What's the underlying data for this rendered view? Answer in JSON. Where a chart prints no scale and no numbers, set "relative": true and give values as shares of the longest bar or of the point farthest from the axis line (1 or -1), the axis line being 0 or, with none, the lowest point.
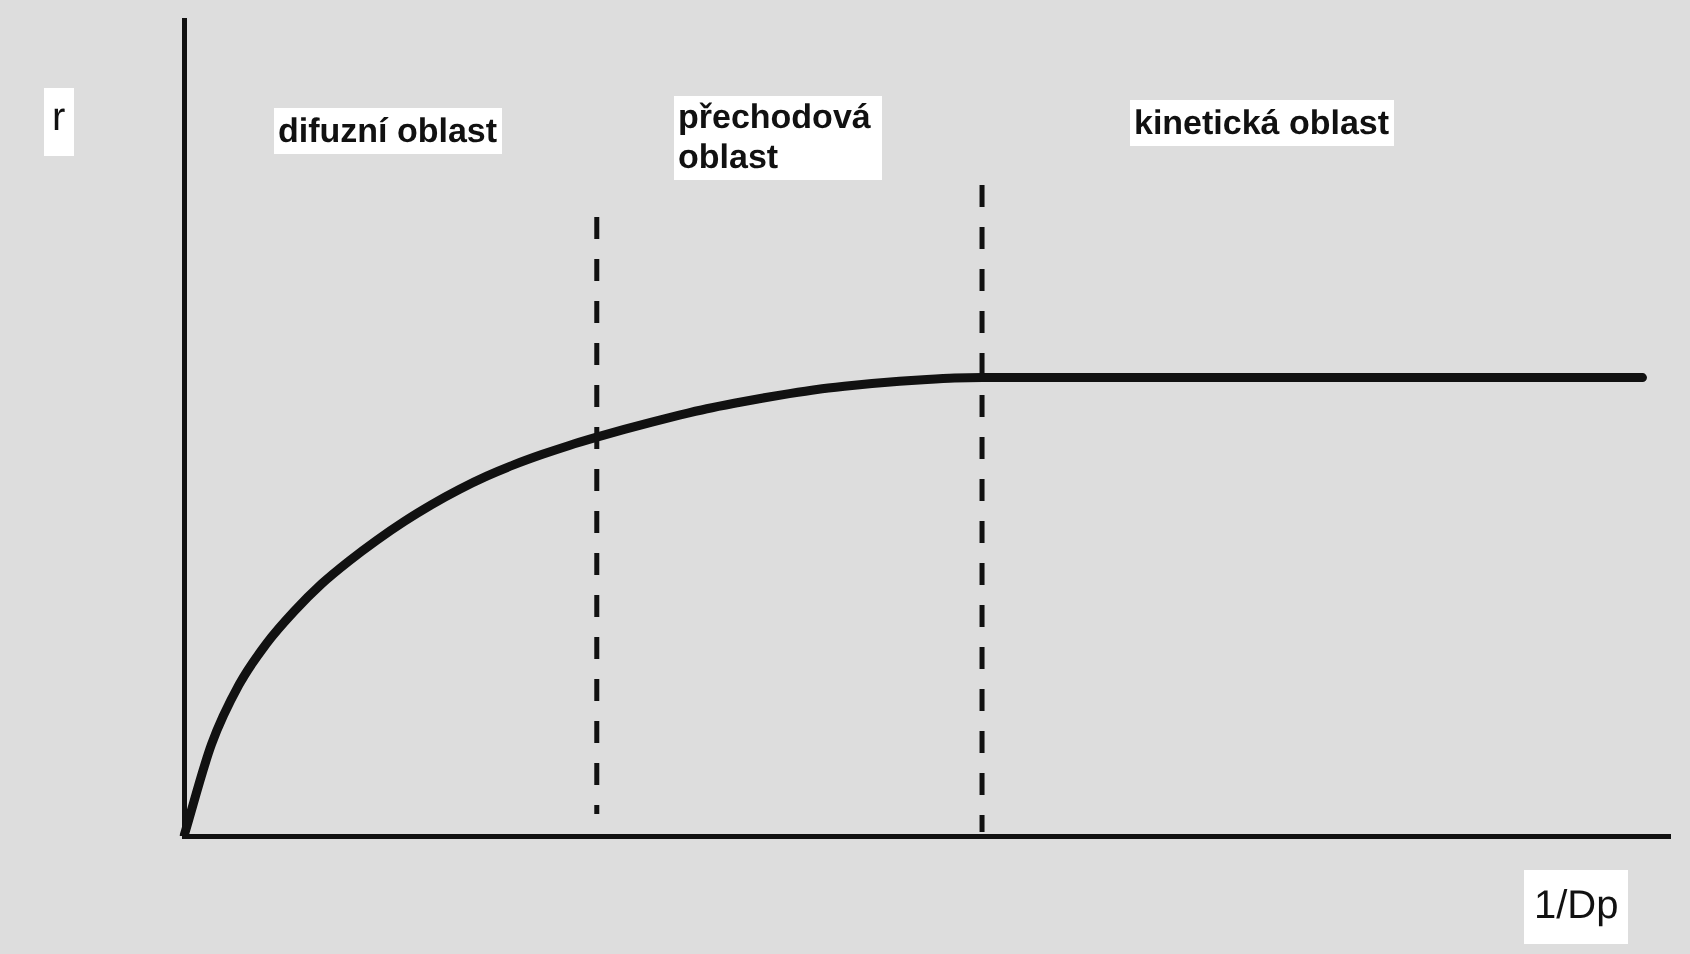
{
  "chart_data": {
    "type": "line",
    "xlabel": "1/Dp",
    "annotations": [
      "r",
      "difuzní oblast",
      "přechodová oblast",
      "kinetická oblast"
    ],
    "categories": [
      null,
      null,
      null,
      null,
      null,
      null,
      null,
      null,
      null,
      null,
      null,
      null,
      null,
      null,
      null,
      null,
      null,
      null,
      null,
      null,
      null,
      null,
      null,
      null,
      null,
      null,
      null,
      null,
      null,
      null,
      null,
      null,
      null,
      null,
      null,
      null,
      null,
      null,
      null,
      null,
      null,
      null,
      null,
      null,
      null,
      null,
      null,
      null,
      null,
      null,
      null,
      null,
      null,
      null,
      null
    ],
    "values": [
      0,
      0.2,
      0.33,
      0.42,
      0.49,
      0.55,
      0.6,
      0.645,
      0.686,
      0.723,
      0.756,
      0.785,
      0.81,
      0.832,
      0.852,
      0.87,
      0.887,
      0.903,
      0.918,
      0.932,
      0.944,
      0.955,
      0.965,
      0.974,
      0.981,
      0.987,
      0.992,
      0.996,
      0.999,
      1,
      1,
      1,
      1,
      1,
      1,
      1,
      1,
      1,
      1,
      1,
      1,
      1,
      1,
      1,
      1,
      1,
      1,
      1,
      1,
      1,
      1,
      1,
      1,
      1,
      null
    ],
    "color": "#111111",
    "relative": true
  }
}
